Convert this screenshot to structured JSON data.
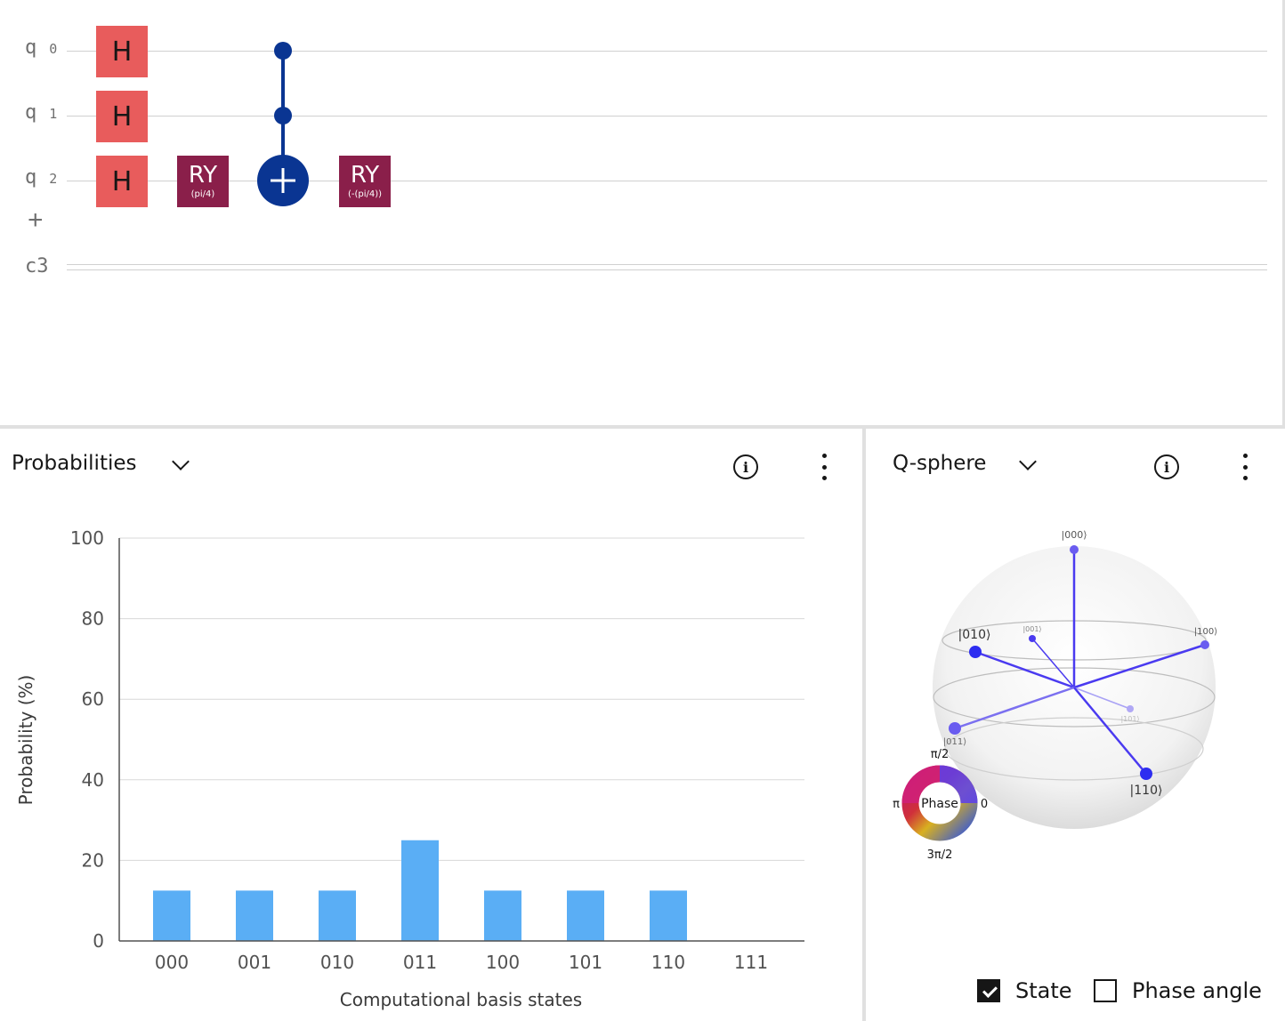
{
  "circuit": {
    "qubits": [
      {
        "prefix": "q",
        "index": "0"
      },
      {
        "prefix": "q",
        "index": "1"
      },
      {
        "prefix": "q",
        "index": "2"
      }
    ],
    "add_symbol": "+",
    "classical_register": "c3",
    "gates": {
      "h_label": "H",
      "ry1": {
        "name": "RY",
        "param": "(pi/4)"
      },
      "ry2": {
        "name": "RY",
        "param": "(-(pi/4))"
      }
    }
  },
  "probabilities_panel": {
    "title": "Probabilities",
    "info_symbol": "i"
  },
  "qsphere_panel": {
    "title": "Q-sphere",
    "info_symbol": "i",
    "phase_wheel": {
      "center": "Phase",
      "top": "π/2",
      "left": "π",
      "right": "0",
      "bottom": "3π/2"
    },
    "states": [
      {
        "label": "|000⟩",
        "size": "small"
      },
      {
        "label": "|001⟩",
        "size": "tiny"
      },
      {
        "label": "|010⟩",
        "size": "large"
      },
      {
        "label": "|100⟩",
        "size": "small"
      },
      {
        "label": "|011⟩",
        "size": "small"
      },
      {
        "label": "|101⟩",
        "size": "tiny"
      },
      {
        "label": "|110⟩",
        "size": "large"
      }
    ],
    "state_color": "#3b3bf0",
    "checkbox_state": {
      "label": "State",
      "checked": true
    },
    "checkbox_phase": {
      "label": "Phase angle",
      "checked": false
    }
  },
  "chart_data": {
    "type": "bar",
    "categories": [
      "000",
      "001",
      "010",
      "011",
      "100",
      "101",
      "110",
      "111"
    ],
    "values": [
      12.5,
      12.5,
      12.5,
      25,
      12.5,
      12.5,
      12.5,
      0
    ],
    "xlabel": "Computational basis states",
    "ylabel": "Probability (%)",
    "ylim": [
      0,
      100
    ],
    "yticks": [
      "0",
      "20",
      "40",
      "60",
      "80",
      "100"
    ],
    "bar_color": "#5aaef5",
    "grid": true
  }
}
